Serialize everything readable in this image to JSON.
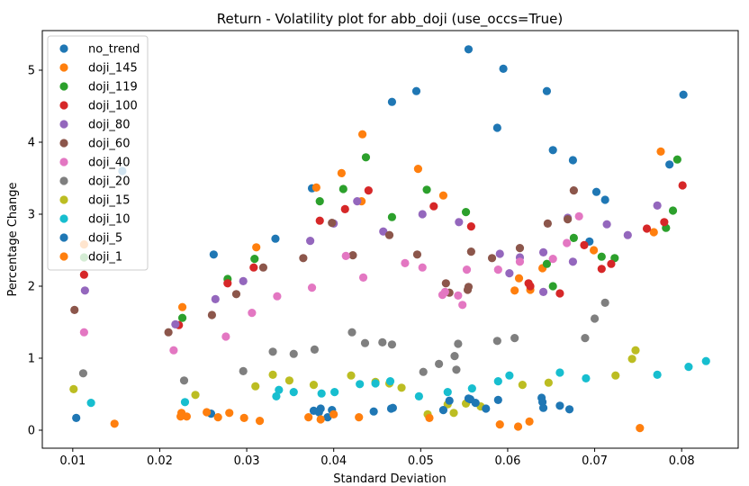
{
  "chart_data": {
    "type": "scatter",
    "title": "Return - Volatility plot for abb_doji (use_occs=True)",
    "xlabel": "Standard Deviation",
    "ylabel": "Percentage Change",
    "xlim": [
      0.0065,
      0.0865
    ],
    "ylim": [
      -0.25,
      5.55
    ],
    "xticks": [
      "0.01",
      "0.02",
      "0.03",
      "0.04",
      "0.05",
      "0.06",
      "0.07",
      "0.08"
    ],
    "xtick_values": [
      0.01,
      0.02,
      0.03,
      0.04,
      0.05,
      0.06,
      0.07,
      0.08
    ],
    "yticks": [
      "0",
      "1",
      "2",
      "3",
      "4",
      "5"
    ],
    "ytick_values": [
      0,
      1,
      2,
      3,
      4,
      5
    ],
    "grid": false,
    "legend_position": "upper-left",
    "series": [
      {
        "name": "no_trend",
        "color": "#1f77b4",
        "points": [
          [
            0.0555,
            5.29
          ],
          [
            0.0595,
            5.02
          ],
          [
            0.0495,
            4.71
          ],
          [
            0.0645,
            4.71
          ],
          [
            0.0802,
            4.66
          ],
          [
            0.0467,
            4.56
          ],
          [
            0.0588,
            4.2
          ],
          [
            0.0652,
            3.89
          ],
          [
            0.0675,
            3.75
          ],
          [
            0.0786,
            3.69
          ],
          [
            0.0375,
            3.36
          ],
          [
            0.0702,
            3.31
          ],
          [
            0.0712,
            3.2
          ],
          [
            0.0333,
            2.66
          ],
          [
            0.0694,
            2.62
          ],
          [
            0.0262,
            2.44
          ]
        ]
      },
      {
        "name": "doji_145",
        "color": "#ff7f0e",
        "points": [
          [
            0.0433,
            4.11
          ],
          [
            0.0776,
            3.87
          ],
          [
            0.0497,
            3.63
          ],
          [
            0.0409,
            3.57
          ],
          [
            0.038,
            3.37
          ],
          [
            0.0526,
            3.26
          ],
          [
            0.0432,
            3.18
          ],
          [
            0.0768,
            2.75
          ],
          [
            0.0699,
            2.5
          ],
          [
            0.0311,
            2.54
          ],
          [
            0.0226,
            1.71
          ],
          [
            0.0613,
            2.11
          ],
          [
            0.0608,
            1.94
          ],
          [
            0.0626,
            1.95
          ],
          [
            0.064,
            2.25
          ]
        ]
      },
      {
        "name": "doji_119",
        "color": "#2ca02c",
        "points": [
          [
            0.0437,
            3.79
          ],
          [
            0.0795,
            3.76
          ],
          [
            0.0411,
            3.35
          ],
          [
            0.0507,
            3.34
          ],
          [
            0.0384,
            3.18
          ],
          [
            0.0552,
            3.03
          ],
          [
            0.0467,
            2.96
          ],
          [
            0.079,
            3.05
          ],
          [
            0.0782,
            2.81
          ],
          [
            0.0676,
            2.67
          ],
          [
            0.0708,
            2.41
          ],
          [
            0.0723,
            2.39
          ],
          [
            0.0645,
            2.31
          ],
          [
            0.0309,
            2.38
          ],
          [
            0.0278,
            2.1
          ],
          [
            0.0226,
            1.56
          ],
          [
            0.0113,
            2.4
          ],
          [
            0.0652,
            2.0
          ]
        ]
      },
      {
        "name": "doji_100",
        "color": "#d62728",
        "points": [
          [
            0.0801,
            3.4
          ],
          [
            0.044,
            3.33
          ],
          [
            0.0515,
            3.11
          ],
          [
            0.0413,
            3.07
          ],
          [
            0.0384,
            2.91
          ],
          [
            0.0558,
            2.83
          ],
          [
            0.076,
            2.8
          ],
          [
            0.078,
            2.89
          ],
          [
            0.0688,
            2.57
          ],
          [
            0.0708,
            2.24
          ],
          [
            0.0719,
            2.31
          ],
          [
            0.0308,
            2.26
          ],
          [
            0.0278,
            2.04
          ],
          [
            0.0113,
            2.16
          ],
          [
            0.0624,
            2.04
          ],
          [
            0.066,
            1.9
          ],
          [
            0.0626,
            2.0
          ],
          [
            0.0222,
            1.46
          ]
        ]
      },
      {
        "name": "doji_80",
        "color": "#9467bd",
        "points": [
          [
            0.0772,
            3.12
          ],
          [
            0.0427,
            3.18
          ],
          [
            0.0502,
            3.0
          ],
          [
            0.0544,
            2.89
          ],
          [
            0.04,
            2.87
          ],
          [
            0.0457,
            2.76
          ],
          [
            0.0373,
            2.63
          ],
          [
            0.0714,
            2.86
          ],
          [
            0.0669,
            2.95
          ],
          [
            0.0738,
            2.71
          ],
          [
            0.0591,
            2.45
          ],
          [
            0.0614,
            2.4
          ],
          [
            0.0641,
            2.47
          ],
          [
            0.0675,
            2.34
          ],
          [
            0.0602,
            2.18
          ],
          [
            0.0296,
            2.07
          ],
          [
            0.0114,
            1.94
          ],
          [
            0.0264,
            1.82
          ],
          [
            0.0218,
            1.47
          ],
          [
            0.0641,
            1.92
          ]
        ]
      },
      {
        "name": "doji_60",
        "color": "#8c564b",
        "points": [
          [
            0.0676,
            3.33
          ],
          [
            0.0398,
            2.88
          ],
          [
            0.0464,
            2.71
          ],
          [
            0.0646,
            2.87
          ],
          [
            0.0669,
            2.93
          ],
          [
            0.0558,
            2.48
          ],
          [
            0.0614,
            2.53
          ],
          [
            0.0365,
            2.39
          ],
          [
            0.0422,
            2.43
          ],
          [
            0.0496,
            2.44
          ],
          [
            0.0582,
            2.39
          ],
          [
            0.0319,
            2.26
          ],
          [
            0.0288,
            1.89
          ],
          [
            0.0533,
            1.91
          ],
          [
            0.0554,
            1.95
          ],
          [
            0.0555,
            1.99
          ],
          [
            0.0529,
            2.04
          ],
          [
            0.026,
            1.6
          ],
          [
            0.0102,
            1.67
          ],
          [
            0.021,
            1.36
          ]
        ]
      },
      {
        "name": "doji_40",
        "color": "#e377c2",
        "points": [
          [
            0.0682,
            2.97
          ],
          [
            0.0434,
            2.12
          ],
          [
            0.0414,
            2.42
          ],
          [
            0.0502,
            2.26
          ],
          [
            0.0482,
            2.32
          ],
          [
            0.0553,
            2.23
          ],
          [
            0.0589,
            2.23
          ],
          [
            0.0614,
            2.34
          ],
          [
            0.0652,
            2.38
          ],
          [
            0.0668,
            2.6
          ],
          [
            0.0375,
            1.98
          ],
          [
            0.0335,
            1.86
          ],
          [
            0.0525,
            1.88
          ],
          [
            0.0543,
            1.87
          ],
          [
            0.0548,
            1.74
          ],
          [
            0.0528,
            1.92
          ],
          [
            0.0306,
            1.63
          ],
          [
            0.0113,
            1.36
          ],
          [
            0.0216,
            1.11
          ],
          [
            0.0276,
            1.3
          ]
        ]
      },
      {
        "name": "doji_20",
        "color": "#7f7f7f",
        "points": [
          [
            0.0712,
            1.77
          ],
          [
            0.07,
            1.55
          ],
          [
            0.0421,
            1.36
          ],
          [
            0.0608,
            1.28
          ],
          [
            0.0689,
            1.28
          ],
          [
            0.0588,
            1.24
          ],
          [
            0.0543,
            1.2
          ],
          [
            0.0456,
            1.22
          ],
          [
            0.0436,
            1.21
          ],
          [
            0.0467,
            1.19
          ],
          [
            0.0378,
            1.12
          ],
          [
            0.033,
            1.09
          ],
          [
            0.0354,
            1.06
          ],
          [
            0.0539,
            1.03
          ],
          [
            0.0521,
            0.92
          ],
          [
            0.0541,
            0.84
          ],
          [
            0.0503,
            0.81
          ],
          [
            0.0296,
            0.82
          ],
          [
            0.0112,
            0.79
          ],
          [
            0.0228,
            0.69
          ]
        ]
      },
      {
        "name": "doji_15",
        "color": "#bcbd22",
        "points": [
          [
            0.0747,
            1.11
          ],
          [
            0.0743,
            0.99
          ],
          [
            0.0724,
            0.76
          ],
          [
            0.033,
            0.77
          ],
          [
            0.042,
            0.76
          ],
          [
            0.0349,
            0.69
          ],
          [
            0.0448,
            0.67
          ],
          [
            0.0464,
            0.65
          ],
          [
            0.0478,
            0.59
          ],
          [
            0.031,
            0.61
          ],
          [
            0.0377,
            0.63
          ],
          [
            0.0647,
            0.66
          ],
          [
            0.0617,
            0.63
          ],
          [
            0.0241,
            0.49
          ],
          [
            0.0101,
            0.57
          ],
          [
            0.0508,
            0.22
          ],
          [
            0.0531,
            0.36
          ],
          [
            0.0552,
            0.37
          ],
          [
            0.0569,
            0.33
          ],
          [
            0.0538,
            0.24
          ]
        ]
      },
      {
        "name": "doji_10",
        "color": "#17becf",
        "points": [
          [
            0.0828,
            0.96
          ],
          [
            0.0808,
            0.88
          ],
          [
            0.0772,
            0.77
          ],
          [
            0.0602,
            0.76
          ],
          [
            0.066,
            0.8
          ],
          [
            0.069,
            0.72
          ],
          [
            0.0589,
            0.68
          ],
          [
            0.0465,
            0.68
          ],
          [
            0.043,
            0.64
          ],
          [
            0.0448,
            0.65
          ],
          [
            0.0337,
            0.56
          ],
          [
            0.0354,
            0.53
          ],
          [
            0.0386,
            0.51
          ],
          [
            0.0401,
            0.53
          ],
          [
            0.0498,
            0.47
          ],
          [
            0.0531,
            0.53
          ],
          [
            0.0559,
            0.58
          ],
          [
            0.0334,
            0.47
          ],
          [
            0.0121,
            0.38
          ],
          [
            0.0229,
            0.39
          ]
        ]
      },
      {
        "name": "doji_5",
        "color": "#1f77b4",
        "points": [
          [
            0.0575,
            0.3
          ],
          [
            0.0589,
            0.42
          ],
          [
            0.0557,
            0.43
          ],
          [
            0.0555,
            0.44
          ],
          [
            0.0563,
            0.38
          ],
          [
            0.0533,
            0.41
          ],
          [
            0.0526,
            0.28
          ],
          [
            0.0639,
            0.45
          ],
          [
            0.064,
            0.39
          ],
          [
            0.0641,
            0.31
          ],
          [
            0.066,
            0.34
          ],
          [
            0.0671,
            0.29
          ],
          [
            0.0385,
            0.3
          ],
          [
            0.0383,
            0.25
          ],
          [
            0.0377,
            0.27
          ],
          [
            0.0393,
            0.18
          ],
          [
            0.0398,
            0.28
          ],
          [
            0.0446,
            0.26
          ],
          [
            0.0466,
            0.3
          ],
          [
            0.0468,
            0.31
          ],
          [
            0.0104,
            0.17
          ],
          [
            0.0259,
            0.23
          ],
          [
            0.0157,
            3.6
          ]
        ]
      },
      {
        "name": "doji_1",
        "color": "#ff7f0e",
        "points": [
          [
            0.0148,
            0.09
          ],
          [
            0.0225,
            0.24
          ],
          [
            0.0224,
            0.19
          ],
          [
            0.0231,
            0.19
          ],
          [
            0.0254,
            0.25
          ],
          [
            0.0267,
            0.18
          ],
          [
            0.028,
            0.24
          ],
          [
            0.0297,
            0.17
          ],
          [
            0.0315,
            0.13
          ],
          [
            0.0371,
            0.18
          ],
          [
            0.0385,
            0.15
          ],
          [
            0.04,
            0.22
          ],
          [
            0.0429,
            0.18
          ],
          [
            0.051,
            0.17
          ],
          [
            0.0591,
            0.08
          ],
          [
            0.0612,
            0.05
          ],
          [
            0.0625,
            0.12
          ],
          [
            0.0752,
            0.03
          ],
          [
            0.0113,
            2.58
          ]
        ]
      }
    ]
  }
}
